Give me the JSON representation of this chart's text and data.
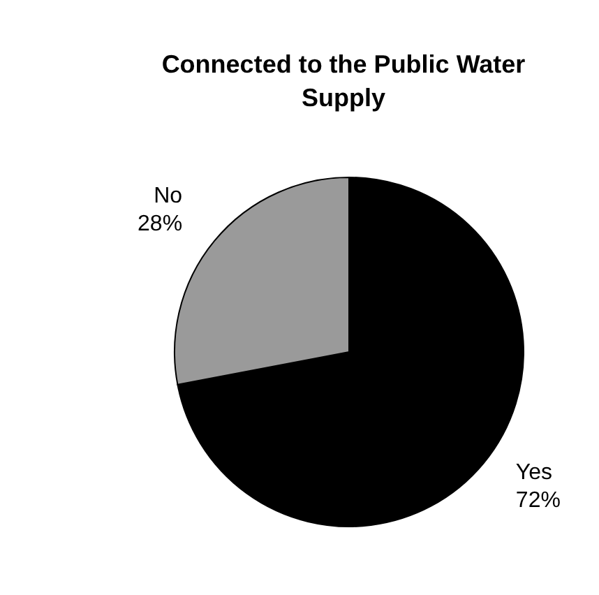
{
  "chart_data": {
    "type": "pie",
    "title": "Connected to the Public Water Supply",
    "categories": [
      "Yes",
      "No"
    ],
    "values": [
      72,
      28
    ],
    "colors": [
      "#000000",
      "#9a9a9a"
    ],
    "value_labels": [
      "72%",
      "28%"
    ]
  }
}
